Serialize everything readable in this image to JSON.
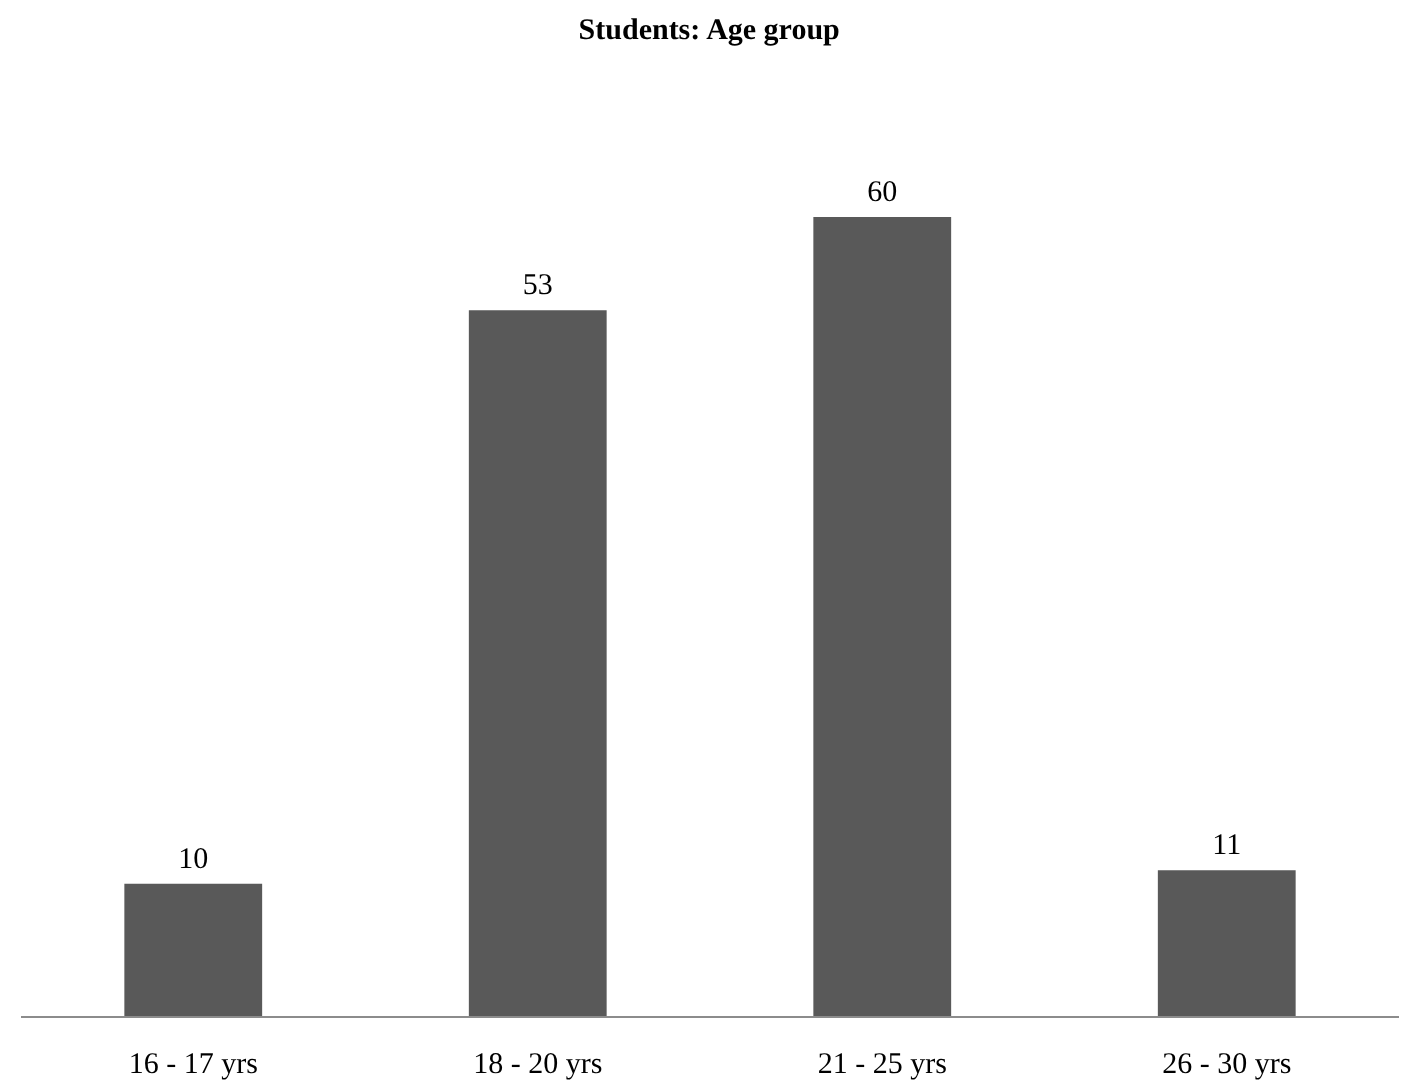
{
  "chart_data": {
    "type": "bar",
    "title": "Students: Age group",
    "categories": [
      "16 - 17 yrs",
      "18 - 20 yrs",
      "21 - 25 yrs",
      "26 - 30 yrs"
    ],
    "values": [
      10,
      53,
      60,
      11
    ],
    "color": "#595959",
    "data_labels": true,
    "grid": false
  }
}
